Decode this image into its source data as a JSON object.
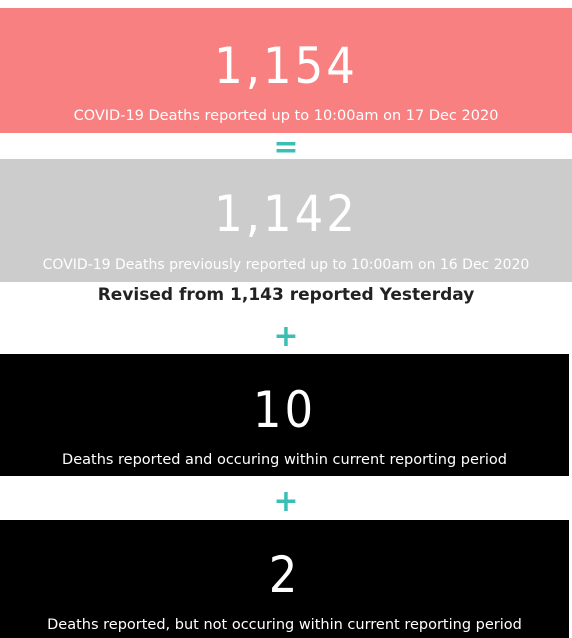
{
  "panels": [
    {
      "value": "1,154",
      "caption": "COVID-19 Deaths reported up to 10:00am on 17 Dec 2020"
    },
    {
      "value": "1,142",
      "caption": "COVID-19 Deaths previously reported up to 10:00am on 16 Dec 2020"
    },
    {
      "value": "10",
      "caption": "Deaths reported and occuring within current reporting period"
    },
    {
      "value": "2",
      "caption": "Deaths reported, but not occuring within current reporting period"
    }
  ],
  "operators": [
    "=",
    "+",
    "+"
  ],
  "note": "Revised from 1,143 reported Yesterday"
}
